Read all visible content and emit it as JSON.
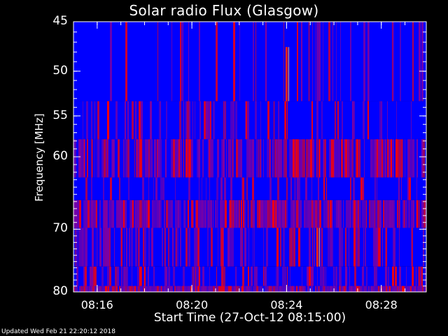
{
  "title": "Solar radio Flux (Glasgow)",
  "footer": "Updated Wed Feb 21 22:20:12 2018",
  "colors": {
    "background": "#000000",
    "low": "#0000ff",
    "mid": "#8000a0",
    "high": "#ff0000",
    "axis": "#ffffff"
  },
  "chart_data": {
    "type": "heatmap",
    "title": "Solar radio Flux (Glasgow)",
    "xlabel": "Start Time (27-Oct-12 08:15:00)",
    "ylabel": "Frequency [MHz]",
    "x_ticks": [
      "08:16",
      "08:20",
      "08:24",
      "08:28"
    ],
    "x_tick_minutes": [
      16,
      20,
      24,
      28
    ],
    "xlim_minutes": [
      15.0,
      29.9
    ],
    "y_ticks": [
      45,
      50,
      55,
      60,
      70,
      80
    ],
    "ylim": [
      45,
      80
    ],
    "y_scale": "log",
    "grid": false,
    "bands": [
      {
        "f_from": 45.0,
        "f_to": 53.3,
        "level": 0.12
      },
      {
        "f_from": 53.3,
        "f_to": 57.8,
        "level": 0.22
      },
      {
        "f_from": 57.8,
        "f_to": 62.7,
        "level": 0.55
      },
      {
        "f_from": 62.7,
        "f_to": 65.8,
        "level": 0.18
      },
      {
        "f_from": 65.8,
        "f_to": 69.8,
        "level": 0.65
      },
      {
        "f_from": 69.8,
        "f_to": 75.8,
        "level": 0.32
      },
      {
        "f_from": 75.8,
        "f_to": 79.0,
        "level": 0.28
      },
      {
        "f_from": 79.0,
        "f_to": 80.0,
        "level": 0.75
      }
    ],
    "bursts": [
      {
        "time_minutes": 24.0,
        "f_from": 47.5,
        "f_to": 53.3
      },
      {
        "time_minutes": 25.3,
        "f_from": 69.8,
        "f_to": 75.8
      }
    ]
  }
}
